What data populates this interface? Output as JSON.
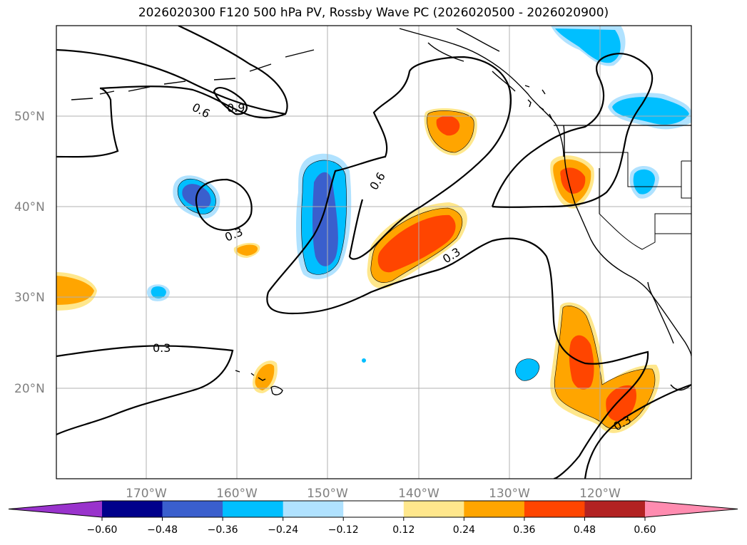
{
  "title": "2026020300 F120 500 hPa PV, Rossby Wave PC (2026020500 - 2026020900)",
  "lat_labels": [
    "50°N",
    "40°N",
    "30°N",
    "20°N"
  ],
  "lon_labels": [
    "170°W",
    "160°W",
    "150°W",
    "140°W",
    "130°W",
    "120°W"
  ],
  "contour_labels": [
    "0.6",
    "0.9",
    "0.3",
    "0.6",
    "0.3",
    "0.3",
    "0.3"
  ],
  "colorbar": {
    "ticks": [
      "−0.60",
      "−0.48",
      "−0.36",
      "−0.24",
      "−0.12",
      "0.12",
      "0.24",
      "0.36",
      "0.48",
      "0.60"
    ],
    "colors": [
      "#9933cc",
      "#00008b",
      "#3a5fcd",
      "#00bfff",
      "#b0e2ff",
      "#ffffff",
      "#ffe78c",
      "#ffa500",
      "#ff4500",
      "#b22222",
      "#ff8cb0"
    ]
  },
  "colors": {
    "neg_light": "#b0e2ff",
    "neg_mid": "#00bfff",
    "neg_dark": "#3a5fcd",
    "pos_light": "#ffe78c",
    "pos_mid": "#ffa500",
    "pos_dark": "#ff4500"
  }
}
